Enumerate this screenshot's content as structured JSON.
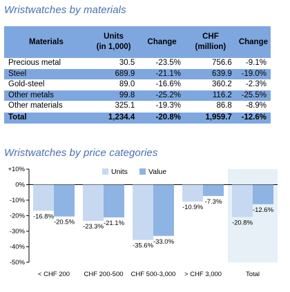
{
  "materials": {
    "title": "Wristwatches by materials",
    "headers": [
      "Materials",
      "Units\n(in 1,000)",
      "Change",
      "CHF\n(million)",
      "Change"
    ],
    "rows": [
      {
        "name": "Precious metal",
        "units": "30.5",
        "units_change": "-23.5%",
        "chf": "756.6",
        "chf_change": "-9.1%",
        "shaded": false
      },
      {
        "name": "Steel",
        "units": "689.9",
        "units_change": "-21.1%",
        "chf": "639.9",
        "chf_change": "-19.0%",
        "shaded": true
      },
      {
        "name": "Gold-steel",
        "units": "89.0",
        "units_change": "-16.6%",
        "chf": "360.2",
        "chf_change": "-2.3%",
        "shaded": false
      },
      {
        "name": "Other metals",
        "units": "99.8",
        "units_change": "-25.2%",
        "chf": "116.2",
        "chf_change": "-25.5%",
        "shaded": true
      },
      {
        "name": "Other materials",
        "units": "325.1",
        "units_change": "-19.3%",
        "chf": "86.8",
        "chf_change": "-8.9%",
        "shaded": false
      }
    ],
    "total": {
      "name": "Total",
      "units": "1,234.4",
      "units_change": "-20.8%",
      "chf": "1,959.7",
      "chf_change": "-12.6%"
    }
  },
  "chart_data": {
    "type": "bar",
    "title": "Wristwatches by price categories",
    "categories": [
      "< CHF 200",
      "CHF 200-500",
      "CHF 500-3,000",
      "> CHF 3,000",
      "Total"
    ],
    "series": [
      {
        "name": "Units",
        "values": [
          -16.8,
          -23.3,
          -35.6,
          -10.9,
          -20.8
        ],
        "color": "#c6d9f1"
      },
      {
        "name": "Value",
        "values": [
          -20.5,
          -21.1,
          -33.0,
          -7.3,
          -12.6
        ],
        "color": "#8eb4e3"
      }
    ],
    "ylim": [
      -50,
      10
    ],
    "yticks": [
      "+10%",
      "0%",
      "-10%",
      "-20%",
      "-30%",
      "-40%",
      "-50%"
    ],
    "ytick_values": [
      10,
      0,
      -10,
      -20,
      -30,
      -40,
      -50
    ],
    "highlight_category": "Total",
    "highlight_color": "#e6f0f6",
    "legend_position": "top-center",
    "grid": false
  }
}
